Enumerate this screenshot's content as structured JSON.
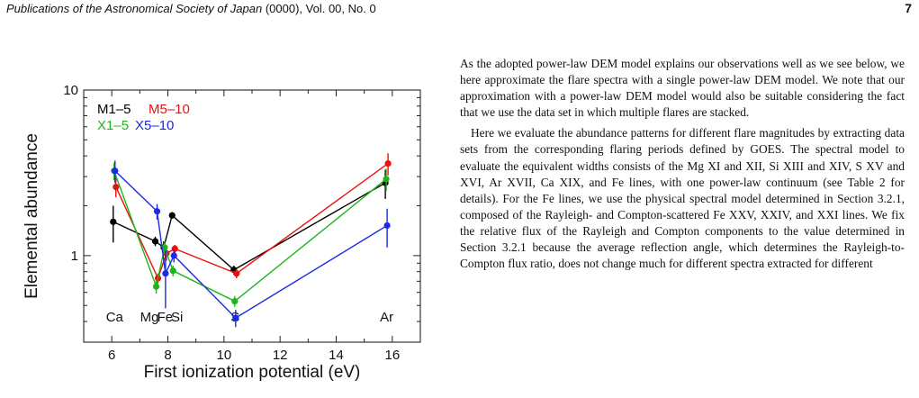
{
  "header": {
    "journal": "Publications of the Astronomical Society of Japan",
    "volume": " (0000), Vol. 00, No. 0",
    "page": "7"
  },
  "chart_data": {
    "type": "scatter",
    "xlabel": "First ionization potential (eV)",
    "ylabel": "Elemental abundance",
    "xlim": [
      5,
      17
    ],
    "ylim": [
      0.3,
      10
    ],
    "yscale": "log",
    "xticks": [
      "6",
      "8",
      "10",
      "12",
      "14",
      "16"
    ],
    "yticks": [
      "1",
      "10"
    ],
    "elements": [
      {
        "name": "Ca",
        "fip": 6.1
      },
      {
        "name": "Mg",
        "fip": 7.6
      },
      {
        "name": "Fe",
        "fip": 7.9
      },
      {
        "name": "Si",
        "fip": 8.2
      },
      {
        "name": "S",
        "fip": 10.4
      },
      {
        "name": "Ar",
        "fip": 15.8
      }
    ],
    "legend_position": "top-left",
    "series": [
      {
        "name": "M1–5",
        "color": "#000000",
        "x": [
          6.1,
          7.6,
          7.9,
          8.2,
          10.4,
          15.8
        ],
        "y": [
          1.6,
          1.22,
          1.12,
          1.75,
          0.82,
          2.75
        ],
        "err": [
          0.4,
          0.08,
          0.1,
          0.08,
          0.05,
          0.55
        ]
      },
      {
        "name": "M5–10",
        "color": "#e8120c",
        "x": [
          6.1,
          7.6,
          7.9,
          8.2,
          10.4,
          15.8
        ],
        "y": [
          2.6,
          0.73,
          1.03,
          1.1,
          0.78,
          3.6
        ],
        "err": [
          0.35,
          0.05,
          0.1,
          0.06,
          0.05,
          0.55
        ]
      },
      {
        "name": "X1–5",
        "color": "#1fb51a",
        "x": [
          6.1,
          7.6,
          7.9,
          8.2,
          10.4,
          15.8
        ],
        "y": [
          3.25,
          0.65,
          1.12,
          0.81,
          0.53,
          2.9
        ],
        "err": [
          0.4,
          0.06,
          0.1,
          0.06,
          0.04,
          0.45
        ]
      },
      {
        "name": "X5–10",
        "color": "#1a2ae6",
        "x": [
          6.1,
          7.6,
          7.9,
          8.2,
          10.4,
          15.8
        ],
        "y": [
          3.25,
          1.85,
          0.78,
          1.0,
          0.42,
          1.52
        ],
        "err": [
          0.5,
          0.2,
          0.3,
          0.09,
          0.05,
          0.4
        ]
      }
    ]
  },
  "text": {
    "p1": "As the adopted power-law DEM model explains our observations well as we see below, we here approximate the flare spectra with a single power-law DEM model. We note that our approximation with a power-law DEM model would also be suitable considering the fact that we use the data set in which multiple flares are stacked.",
    "p2": "Here we evaluate the abundance patterns for different flare magnitudes by extracting data sets from the corresponding flaring periods defined by GOES. The spectral model to evaluate the equivalent widths consists of the Mg XI and XII, Si XIII and XIV, S XV and XVI, Ar XVII, Ca XIX, and Fe lines, with one power-law continuum (see Table 2 for details). For the Fe lines, we use the physical spectral model determined in Section 3.2.1, composed of the Rayleigh- and Compton-scattered Fe XXV, XXIV, and XXI lines. We fix the relative flux of the Rayleigh and Compton components to the value determined in Section 3.2.1 because the average reflection angle, which determines the Rayleigh-to-Compton flux ratio, does not change much for different spectra extracted for different"
  }
}
